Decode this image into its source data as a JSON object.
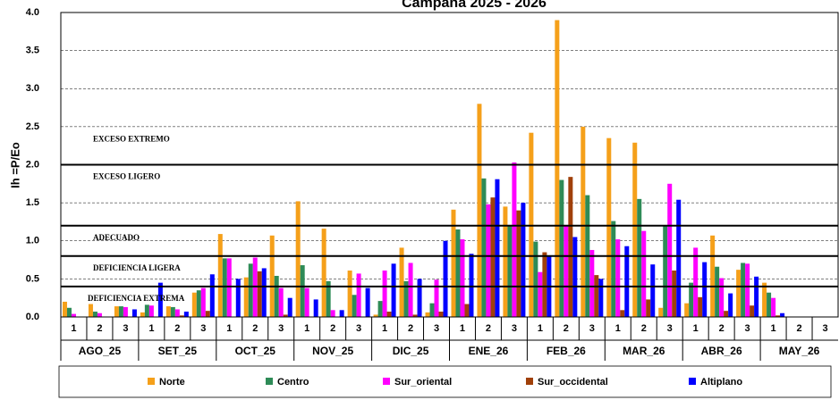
{
  "chart_data": {
    "type": "bar",
    "title": "Campana 2025 - 2026",
    "y_label": "Ih =P/Eo",
    "categories": [
      "1",
      "2",
      "3",
      "1",
      "2",
      "3",
      "1",
      "2",
      "3",
      "1",
      "2",
      "3",
      "1",
      "2",
      "3",
      "1",
      "2",
      "3",
      "1",
      "2",
      "3",
      "1",
      "2",
      "3",
      "1",
      "2",
      "3",
      "1",
      "2",
      "3"
    ],
    "groups": [
      "AGO_25",
      "SET_25",
      "OCT_25",
      "NOV_25",
      "DIC_25",
      "ENE_26",
      "FEB_26",
      "MAR_26",
      "ABR_26",
      "MAY_26"
    ],
    "series": [
      {
        "name": "Norte",
        "color": "#f5a01a",
        "values": [
          0.2,
          0.17,
          0.14,
          0.06,
          0.14,
          0.32,
          1.09,
          0.52,
          1.07,
          1.52,
          1.16,
          0.61,
          0.03,
          0.91,
          0.06,
          1.41,
          2.8,
          1.45,
          2.42,
          3.9,
          2.5,
          2.35,
          2.29,
          0.12,
          0.18,
          1.07,
          0.62,
          0.45,
          null,
          null
        ]
      },
      {
        "name": "Centro",
        "color": "#2e8b57",
        "values": [
          0.12,
          0.07,
          0.14,
          0.16,
          0.13,
          0.35,
          0.77,
          0.7,
          0.54,
          0.68,
          0.47,
          0.29,
          0.21,
          0.47,
          0.18,
          1.15,
          1.82,
          1.2,
          0.99,
          1.8,
          1.6,
          1.26,
          1.55,
          1.2,
          0.45,
          0.66,
          0.71,
          0.32,
          null,
          null
        ]
      },
      {
        "name": "Sur_oriental",
        "color": "#ff00ff",
        "values": [
          0.04,
          0.05,
          0.13,
          0.15,
          0.1,
          0.38,
          0.77,
          0.78,
          0.38,
          0.38,
          0.09,
          0.57,
          0.61,
          0.71,
          0.49,
          1.02,
          1.48,
          2.03,
          0.59,
          1.2,
          0.88,
          1.02,
          1.13,
          1.75,
          0.91,
          0.51,
          0.7,
          0.25,
          null,
          null
        ]
      },
      {
        "name": "Sur_occidental",
        "color": "#a0400a",
        "values": [
          null,
          null,
          null,
          null,
          0.02,
          0.08,
          null,
          0.6,
          0.03,
          null,
          null,
          null,
          0.07,
          0.03,
          0.07,
          0.17,
          1.57,
          1.4,
          0.85,
          1.84,
          0.55,
          0.09,
          0.23,
          0.61,
          0.26,
          0.08,
          0.15,
          0.02,
          null,
          null
        ]
      },
      {
        "name": "Altiplano",
        "color": "#0000ff",
        "values": [
          null,
          null,
          0.1,
          0.45,
          0.07,
          0.56,
          0.5,
          0.64,
          0.25,
          0.23,
          0.09,
          0.38,
          0.7,
          0.5,
          1.0,
          0.83,
          1.81,
          1.5,
          0.8,
          1.05,
          0.5,
          0.93,
          0.69,
          1.54,
          0.72,
          0.31,
          0.53,
          0.05,
          null,
          null
        ]
      }
    ],
    "ylim": [
      0,
      4
    ],
    "yticks": [
      {
        "value": 0,
        "label": "0.0"
      },
      {
        "value": 0.5,
        "label": "0.5"
      },
      {
        "value": 1,
        "label": "1.0"
      },
      {
        "value": 1.5,
        "label": "1.5"
      },
      {
        "value": 2,
        "label": "2.0"
      },
      {
        "value": 2.5,
        "label": "2.5"
      },
      {
        "value": 3,
        "label": "3.0"
      },
      {
        "value": 3.5,
        "label": "3.5"
      },
      {
        "value": 4,
        "label": "4.0"
      }
    ],
    "grid": true,
    "threshold_lines": [
      2,
      1.2,
      0.8,
      0.4
    ],
    "zone_labels": [
      "EXCESO EXTREMO",
      "EXCESO LIGERO",
      "ADECUADO",
      "DEFICIENCIA LIGERA",
      "DEFICIENCIA EXTREMA"
    ]
  }
}
